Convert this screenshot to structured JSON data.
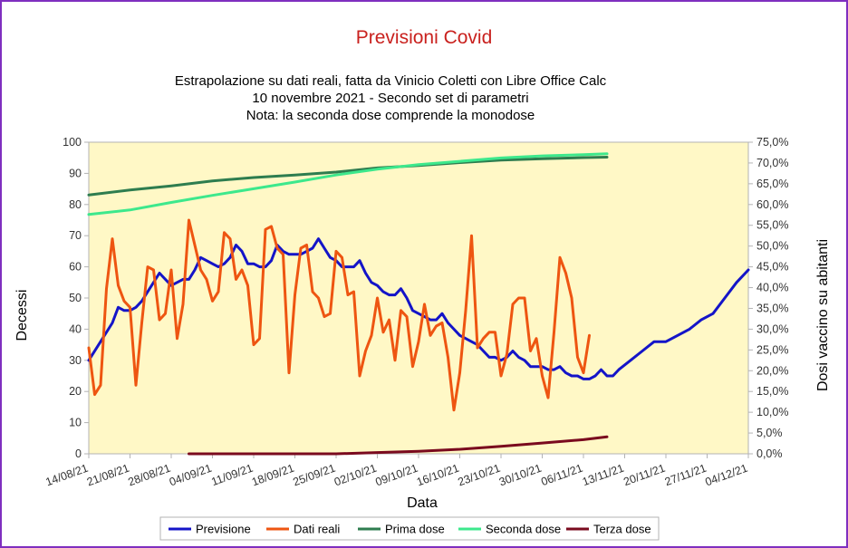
{
  "chart_data": {
    "type": "line",
    "title": "Previsioni Covid",
    "subtitle_lines": [
      "Estrapolazione su dati reali, fatta da Vinicio Coletti con Libre Office Calc",
      "10 novembre 2021 - Secondo set di parametri",
      "Nota: la seconda dose comprende la monodose"
    ],
    "xlabel": "Data",
    "ylabel": "Decessi",
    "y2label": "Dosi vaccino su abitanti",
    "ylim": [
      0,
      100
    ],
    "y2lim": [
      0,
      0.75
    ],
    "y_ticks": [
      "0",
      "10",
      "20",
      "30",
      "40",
      "50",
      "60",
      "70",
      "80",
      "90",
      "100"
    ],
    "y2_ticks": [
      "0,0%",
      "5,0%",
      "10,0%",
      "15,0%",
      "20,0%",
      "25,0%",
      "30,0%",
      "35,0%",
      "40,0%",
      "45,0%",
      "50,0%",
      "55,0%",
      "60,0%",
      "65,0%",
      "70,0%",
      "75,0%"
    ],
    "x_start": "14/08/21",
    "x_ticks": [
      "14/08/21",
      "21/08/21",
      "28/08/21",
      "04/09/21",
      "11/09/21",
      "18/09/21",
      "25/09/21",
      "02/10/21",
      "09/10/21",
      "16/10/21",
      "23/10/21",
      "30/10/21",
      "06/11/21",
      "13/11/21",
      "20/11/21",
      "27/11/21",
      "04/12/21"
    ],
    "x_range_days": [
      0,
      112
    ],
    "x_unit": "days since 14/08/21",
    "grid": false,
    "legend_position": "bottom",
    "series": [
      {
        "name": "Previsione",
        "color": "#1414c8",
        "axis": "left",
        "x": [
          0,
          2,
          4,
          5,
          6,
          7,
          8,
          9,
          10,
          11,
          12,
          13,
          14,
          15,
          16,
          17,
          18,
          19,
          20,
          21,
          22,
          23,
          24,
          25,
          26,
          27,
          28,
          29,
          30,
          31,
          32,
          33,
          34,
          35,
          36,
          37,
          38,
          39,
          40,
          41,
          42,
          43,
          44,
          45,
          46,
          47,
          48,
          49,
          50,
          51,
          52,
          53,
          54,
          55,
          56,
          57,
          58,
          59,
          60,
          61,
          62,
          63,
          64,
          65,
          66,
          67,
          68,
          69,
          70,
          71,
          72,
          73,
          74,
          75,
          76,
          77,
          78,
          79,
          80,
          81,
          82,
          83,
          84,
          85,
          86,
          87,
          88,
          89,
          90,
          92,
          94,
          96,
          98,
          100,
          102,
          104,
          106,
          108,
          110,
          112
        ],
        "values": [
          30,
          36,
          42,
          47,
          46,
          46,
          47,
          49,
          52,
          55,
          58,
          56,
          54,
          55,
          56,
          56,
          59,
          63,
          62,
          61,
          60,
          61,
          63,
          67,
          65,
          61,
          61,
          60,
          60,
          62,
          67,
          65,
          64,
          64,
          64,
          65,
          66,
          69,
          66,
          63,
          62,
          60,
          60,
          60,
          62,
          58,
          55,
          54,
          52,
          51,
          51,
          53,
          50,
          46,
          45,
          44,
          43,
          43,
          45,
          42,
          40,
          38,
          37,
          36,
          35,
          33,
          31,
          31,
          30,
          31,
          33,
          31,
          30,
          28,
          28,
          28,
          27,
          27,
          28,
          26,
          25,
          25,
          24,
          24,
          25,
          27,
          25,
          25,
          27,
          30,
          33,
          36,
          36,
          38,
          40,
          43,
          45,
          50,
          55,
          59
        ]
      },
      {
        "name": "Dati reali",
        "color": "#ee5511",
        "axis": "left",
        "x": [
          0,
          1,
          2,
          3,
          4,
          5,
          6,
          7,
          8,
          9,
          10,
          11,
          12,
          13,
          14,
          15,
          16,
          17,
          18,
          19,
          20,
          21,
          22,
          23,
          24,
          25,
          26,
          27,
          28,
          29,
          30,
          31,
          32,
          33,
          34,
          35,
          36,
          37,
          38,
          39,
          40,
          41,
          42,
          43,
          44,
          45,
          46,
          47,
          48,
          49,
          50,
          51,
          52,
          53,
          54,
          55,
          56,
          57,
          58,
          59,
          60,
          61,
          62,
          63,
          64,
          65,
          66,
          67,
          68,
          69,
          70,
          71,
          72,
          73,
          74,
          75,
          76,
          77,
          78,
          79,
          80,
          81,
          82,
          83,
          84,
          85
        ],
        "values": [
          34,
          19,
          22,
          53,
          69,
          54,
          49,
          47,
          22,
          42,
          60,
          59,
          43,
          45,
          59,
          37,
          48,
          75,
          67,
          59,
          56,
          49,
          52,
          71,
          69,
          56,
          59,
          54,
          35,
          37,
          72,
          73,
          66,
          64,
          26,
          51,
          66,
          67,
          52,
          50,
          44,
          45,
          65,
          63,
          51,
          52,
          25,
          33,
          38,
          50,
          39,
          43,
          30,
          46,
          44,
          28,
          36,
          48,
          38,
          41,
          42,
          31,
          14,
          26,
          46,
          70,
          34,
          37,
          39,
          39,
          25,
          32,
          48,
          50,
          50,
          33,
          37,
          25,
          18,
          39,
          63,
          58,
          50,
          31,
          26,
          38
        ]
      },
      {
        "name": "Prima dose",
        "color": "#2e7d4f",
        "axis": "right",
        "x": [
          0,
          7,
          14,
          21,
          28,
          35,
          42,
          49,
          56,
          63,
          70,
          77,
          84,
          88
        ],
        "values": [
          0.623,
          0.635,
          0.645,
          0.657,
          0.665,
          0.671,
          0.678,
          0.688,
          0.694,
          0.701,
          0.707,
          0.71,
          0.713,
          0.714
        ]
      },
      {
        "name": "Seconda dose",
        "color": "#3de88c",
        "axis": "right",
        "x": [
          0,
          7,
          14,
          21,
          28,
          35,
          42,
          49,
          56,
          63,
          70,
          77,
          84,
          88
        ],
        "values": [
          0.576,
          0.587,
          0.605,
          0.622,
          0.638,
          0.654,
          0.671,
          0.685,
          0.696,
          0.704,
          0.712,
          0.717,
          0.72,
          0.722
        ]
      },
      {
        "name": "Terza dose",
        "color": "#7a0a1e",
        "axis": "right",
        "x": [
          17,
          25,
          35,
          42,
          49,
          56,
          63,
          70,
          77,
          84,
          88
        ],
        "values": [
          0.0,
          0.0,
          0.0,
          0.0,
          0.003,
          0.006,
          0.011,
          0.018,
          0.026,
          0.034,
          0.041
        ]
      }
    ]
  }
}
